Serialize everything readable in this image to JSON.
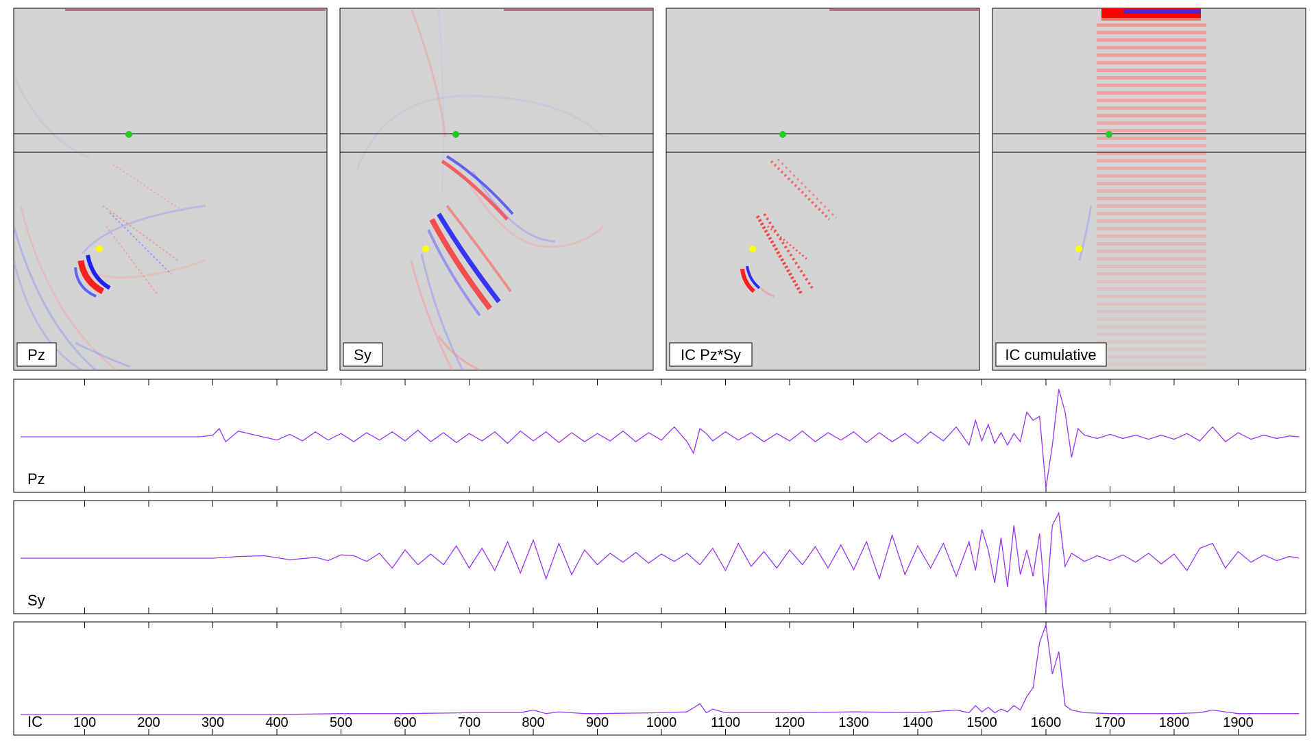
{
  "panels": [
    {
      "label": "Pz"
    },
    {
      "label": "Sy"
    },
    {
      "label": "IC Pz*Sy"
    },
    {
      "label": "IC cumulative"
    }
  ],
  "colors": {
    "panel_bg": "#d4d4d4",
    "positive": "#ff0000",
    "negative": "#0000ff",
    "source_dot": "#22cc22",
    "receiver_dot": "#ffff00",
    "trace": "#9933ff"
  },
  "chart_data": [
    {
      "type": "line",
      "title": "",
      "label": "Pz",
      "xlabel": "",
      "ylabel": "",
      "xlim": [
        0,
        2000
      ],
      "grid": false,
      "series": [
        {
          "x": [
            0,
            100,
            200,
            280,
            300,
            310,
            320,
            340,
            350,
            400,
            420,
            440,
            460,
            480,
            500,
            520,
            540,
            560,
            580,
            600,
            620,
            640,
            660,
            680,
            700,
            720,
            740,
            760,
            780,
            800,
            820,
            840,
            860,
            880,
            900,
            920,
            940,
            960,
            980,
            1000,
            1020,
            1040,
            1050,
            1060,
            1070,
            1080,
            1100,
            1120,
            1140,
            1160,
            1180,
            1200,
            1220,
            1240,
            1260,
            1280,
            1300,
            1320,
            1340,
            1360,
            1380,
            1400,
            1420,
            1440,
            1460,
            1480,
            1490,
            1500,
            1510,
            1520,
            1530,
            1540,
            1550,
            1560,
            1570,
            1580,
            1590,
            1600,
            1610,
            1620,
            1630,
            1640,
            1650,
            1660,
            1680,
            1700,
            1720,
            1740,
            1760,
            1780,
            1800,
            1820,
            1840,
            1860,
            1880,
            1900,
            1920,
            1940,
            1960,
            1980,
            1995
          ],
          "y": [
            0,
            0,
            0,
            0,
            0.02,
            0.1,
            -0.06,
            0.07,
            0.05,
            -0.04,
            0.03,
            -0.05,
            0.06,
            -0.04,
            0.04,
            -0.06,
            0.05,
            -0.04,
            0.06,
            -0.05,
            0.08,
            -0.06,
            0.05,
            -0.07,
            0.04,
            -0.05,
            0.06,
            -0.08,
            0.07,
            -0.05,
            0.06,
            -0.07,
            0.05,
            -0.06,
            0.04,
            -0.05,
            0.07,
            -0.06,
            0.05,
            -0.04,
            0.12,
            -0.06,
            -0.2,
            0.1,
            0.04,
            -0.05,
            0.06,
            -0.04,
            0.05,
            -0.06,
            0.04,
            -0.05,
            0.07,
            -0.06,
            0.05,
            -0.04,
            0.06,
            -0.07,
            0.05,
            -0.06,
            0.04,
            -0.08,
            0.06,
            -0.05,
            0.12,
            -0.1,
            0.2,
            -0.05,
            0.15,
            -0.08,
            0.05,
            -0.1,
            0.04,
            -0.06,
            0.3,
            0.2,
            0.25,
            -0.62,
            -0.1,
            0.58,
            0.3,
            -0.25,
            0.1,
            0.02,
            -0.02,
            0.03,
            -0.02,
            0.02,
            -0.03,
            0.02,
            -0.03,
            0.04,
            -0.05,
            0.12,
            -0.06,
            0.05,
            -0.03,
            0.02,
            -0.02,
            0.01,
            0
          ]
        }
      ]
    },
    {
      "type": "line",
      "title": "",
      "label": "Sy",
      "xlabel": "",
      "ylabel": "",
      "xlim": [
        0,
        2000
      ],
      "grid": false,
      "series": [
        {
          "x": [
            0,
            100,
            200,
            300,
            340,
            380,
            420,
            460,
            480,
            500,
            520,
            540,
            560,
            580,
            600,
            620,
            640,
            660,
            680,
            700,
            720,
            740,
            760,
            780,
            800,
            820,
            840,
            860,
            880,
            900,
            920,
            940,
            960,
            980,
            1000,
            1020,
            1040,
            1060,
            1080,
            1100,
            1120,
            1140,
            1160,
            1180,
            1200,
            1220,
            1240,
            1260,
            1280,
            1300,
            1320,
            1340,
            1360,
            1380,
            1400,
            1420,
            1440,
            1460,
            1480,
            1490,
            1500,
            1510,
            1520,
            1530,
            1540,
            1550,
            1560,
            1570,
            1580,
            1590,
            1600,
            1610,
            1620,
            1630,
            1640,
            1660,
            1680,
            1700,
            1720,
            1740,
            1760,
            1780,
            1800,
            1820,
            1840,
            1860,
            1880,
            1900,
            1920,
            1940,
            1960,
            1980,
            1995
          ],
          "y": [
            0,
            0,
            0,
            0,
            0.02,
            0.03,
            -0.02,
            0.01,
            -0.03,
            0.04,
            0.03,
            -0.04,
            0.06,
            -0.12,
            0.1,
            -0.08,
            0.05,
            -0.08,
            0.15,
            -0.12,
            0.12,
            -0.15,
            0.2,
            -0.18,
            0.22,
            -0.25,
            0.18,
            -0.2,
            0.1,
            -0.08,
            0.06,
            -0.05,
            0.07,
            -0.06,
            0.05,
            -0.04,
            0.06,
            -0.08,
            0.12,
            -0.15,
            0.18,
            -0.1,
            0.08,
            -0.12,
            0.1,
            -0.08,
            0.14,
            -0.12,
            0.16,
            -0.14,
            0.2,
            -0.25,
            0.28,
            -0.2,
            0.15,
            -0.12,
            0.18,
            -0.22,
            0.2,
            -0.15,
            0.35,
            0.1,
            -0.3,
            0.25,
            -0.35,
            0.4,
            -0.2,
            0.1,
            -0.22,
            0.3,
            -0.62,
            0.4,
            0.55,
            -0.1,
            0.06,
            -0.04,
            0.03,
            -0.03,
            0.04,
            -0.05,
            0.06,
            -0.07,
            0.05,
            -0.15,
            0.12,
            0.18,
            -0.12,
            0.08,
            -0.05,
            0.04,
            -0.03,
            0.02,
            0
          ]
        }
      ]
    },
    {
      "type": "line",
      "title": "",
      "label": "IC",
      "xlabel": "",
      "ylabel": "",
      "xlim": [
        0,
        2000
      ],
      "xticks": [
        100,
        200,
        300,
        400,
        500,
        600,
        700,
        800,
        900,
        1000,
        1100,
        1200,
        1300,
        1400,
        1500,
        1600,
        1700,
        1800,
        1900
      ],
      "grid": false,
      "series": [
        {
          "x": [
            0,
            100,
            200,
            300,
            400,
            500,
            600,
            700,
            780,
            800,
            820,
            840,
            860,
            880,
            900,
            1000,
            1040,
            1060,
            1070,
            1080,
            1100,
            1200,
            1300,
            1400,
            1460,
            1480,
            1490,
            1500,
            1510,
            1520,
            1530,
            1540,
            1550,
            1560,
            1570,
            1580,
            1590,
            1600,
            1610,
            1620,
            1630,
            1640,
            1660,
            1700,
            1800,
            1840,
            1860,
            1880,
            1900,
            1995
          ],
          "y": [
            0,
            0,
            0,
            0,
            0,
            0.01,
            0.01,
            0.02,
            0.02,
            0.05,
            0.01,
            0.03,
            0.02,
            0.01,
            0.01,
            0.02,
            0.03,
            0.12,
            0.02,
            0.06,
            0.02,
            0.02,
            0.03,
            0.02,
            0.05,
            0.02,
            0.1,
            0.03,
            0.08,
            0.02,
            0.06,
            0.03,
            0.1,
            0.05,
            0.2,
            0.3,
            0.8,
            1,
            0.45,
            0.7,
            0.1,
            0.05,
            0.02,
            0.01,
            0.01,
            0.02,
            0.05,
            0.03,
            0.01,
            0.01
          ]
        }
      ]
    }
  ]
}
